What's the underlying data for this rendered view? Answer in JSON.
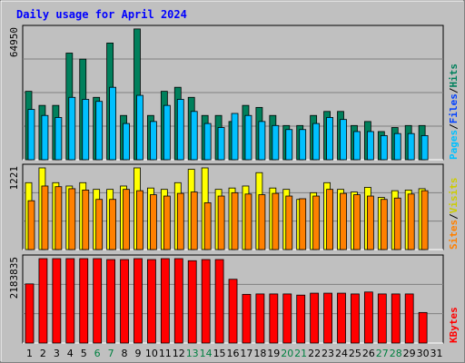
{
  "title": "Daily usage for April 2024",
  "colors": {
    "background": "#C0C0C0",
    "title": "#0000FF",
    "hits": "#00805C",
    "files": "#0040FF",
    "pages": "#00C0FF",
    "visits": "#FFFF00",
    "sites": "#FF8000",
    "kbytes": "#FF0000",
    "weekend_label": "#008040",
    "weekday_label": "#000000",
    "gridline": "#808080"
  },
  "labels": {
    "pages": "Pages",
    "files": "Files",
    "hits": "Hits",
    "sites": "Sites",
    "visits": "Visits",
    "kbytes": "KBytes",
    "separator": "/"
  },
  "chart_data": [
    {
      "type": "bar",
      "name": "hits-files-pages",
      "ymax_label": "64950",
      "ylim": [
        0,
        64950
      ],
      "categories": [
        "1",
        "2",
        "3",
        "4",
        "5",
        "6",
        "7",
        "8",
        "9",
        "10",
        "11",
        "12",
        "13",
        "14",
        "15",
        "16",
        "17",
        "18",
        "19",
        "20",
        "21",
        "22",
        "23",
        "24",
        "25",
        "26",
        "27",
        "28",
        "29",
        "30",
        "31"
      ],
      "weekend_days": [
        6,
        7,
        13,
        14,
        20,
        21,
        27,
        28
      ],
      "series": [
        {
          "name": "Hits",
          "values": [
            34000,
            27000,
            27000,
            53000,
            50000,
            31000,
            58000,
            22000,
            65000,
            22000,
            34000,
            36000,
            31000,
            22000,
            22000,
            19000,
            27000,
            26000,
            22000,
            17000,
            17000,
            22000,
            24000,
            24000,
            17000,
            19000,
            14000,
            16000,
            17000,
            17000,
            0
          ]
        },
        {
          "name": "Pages",
          "values": [
            25000,
            22000,
            21000,
            31000,
            30000,
            29000,
            36000,
            18000,
            32000,
            19000,
            27000,
            30000,
            24000,
            18000,
            16000,
            23000,
            22000,
            19000,
            17000,
            15000,
            15000,
            18000,
            21000,
            20000,
            14000,
            14000,
            12000,
            13000,
            13000,
            12000,
            0
          ]
        }
      ]
    },
    {
      "type": "bar",
      "name": "visits-sites",
      "ymax_label": "1221",
      "ylim": [
        0,
        1221
      ],
      "categories": [
        "1",
        "2",
        "3",
        "4",
        "5",
        "6",
        "7",
        "8",
        "9",
        "10",
        "11",
        "12",
        "13",
        "14",
        "15",
        "16",
        "17",
        "18",
        "19",
        "20",
        "21",
        "22",
        "23",
        "24",
        "25",
        "26",
        "27",
        "28",
        "29",
        "30",
        "31"
      ],
      "series": [
        {
          "name": "Visits",
          "values": [
            1000,
            1221,
            1000,
            950,
            1000,
            900,
            900,
            950,
            1221,
            920,
            900,
            1000,
            1200,
            1221,
            900,
            920,
            950,
            1150,
            920,
            900,
            750,
            850,
            1000,
            900,
            860,
            930,
            780,
            880,
            890,
            910,
            0
          ]
        },
        {
          "name": "Sites",
          "values": [
            730,
            950,
            940,
            910,
            890,
            750,
            750,
            900,
            880,
            820,
            800,
            840,
            860,
            700,
            800,
            850,
            830,
            820,
            840,
            800,
            760,
            800,
            900,
            840,
            820,
            800,
            750,
            770,
            830,
            880,
            0
          ]
        }
      ]
    },
    {
      "type": "bar",
      "name": "kbytes",
      "ymax_label": "2183835",
      "ylim": [
        0,
        2183835
      ],
      "categories": [
        "1",
        "2",
        "3",
        "4",
        "5",
        "6",
        "7",
        "8",
        "9",
        "10",
        "11",
        "12",
        "13",
        "14",
        "15",
        "16",
        "17",
        "18",
        "19",
        "20",
        "21",
        "22",
        "23",
        "24",
        "25",
        "26",
        "27",
        "28",
        "29",
        "30",
        "31"
      ],
      "series": [
        {
          "name": "KBytes",
          "values": [
            1530000,
            2183835,
            2183835,
            2183835,
            2183835,
            2183835,
            2160000,
            2160000,
            2183835,
            2160000,
            2183835,
            2183835,
            2130000,
            2160000,
            2160000,
            1650000,
            1260000,
            1270000,
            1270000,
            1270000,
            1240000,
            1290000,
            1290000,
            1290000,
            1270000,
            1320000,
            1270000,
            1270000,
            1270000,
            790000,
            0
          ]
        }
      ]
    }
  ]
}
